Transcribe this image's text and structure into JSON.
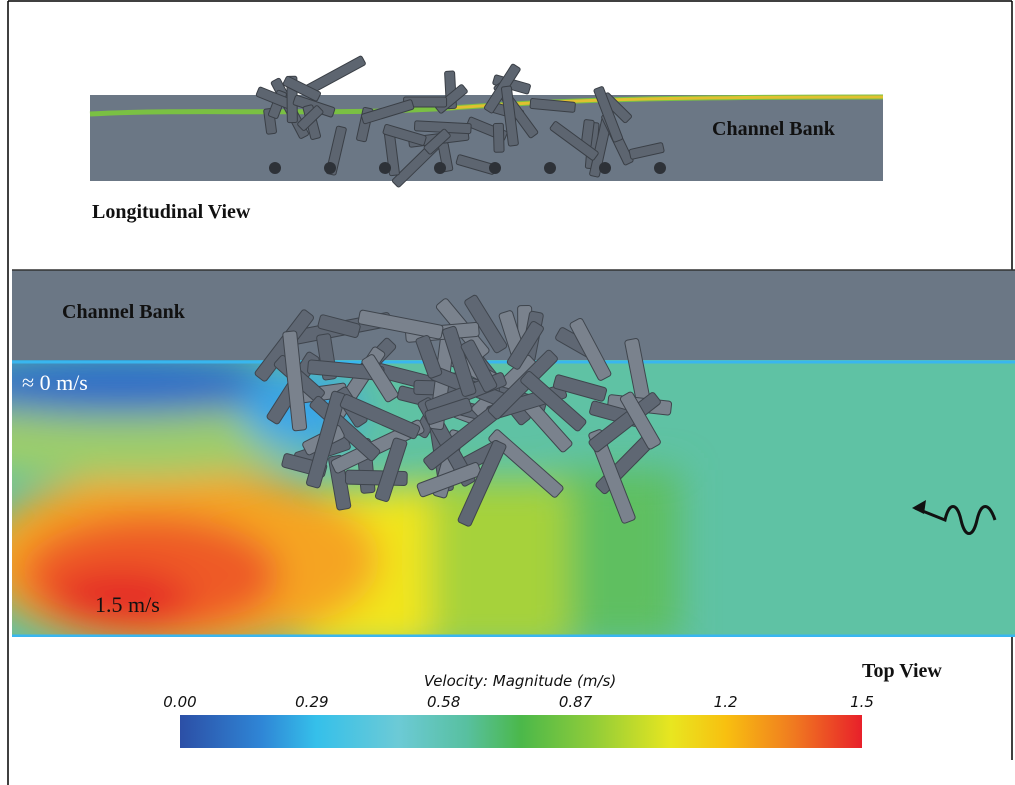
{
  "longitudinal_view": {
    "bank_label": "Channel Bank",
    "caption": "Longitudinal View"
  },
  "top_view": {
    "bank_label": "Channel Bank",
    "low_label": "≈ 0 m/s",
    "high_label": "1.5 m/s",
    "caption": "Top View"
  },
  "colorbar": {
    "title": "Velocity: Magnitude (m/s)",
    "range": [
      0,
      1.5
    ],
    "ticks": [
      {
        "value": 0,
        "label": "0.00"
      },
      {
        "value": 0.29,
        "label": "0.29"
      },
      {
        "value": 0.58,
        "label": "0.58"
      },
      {
        "value": 0.87,
        "label": "0.87"
      },
      {
        "value": 1.2,
        "label": "1.2"
      },
      {
        "value": 1.5,
        "label": "1.5"
      }
    ]
  }
}
